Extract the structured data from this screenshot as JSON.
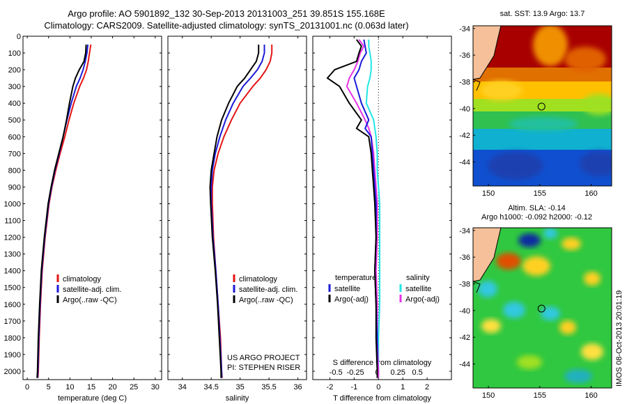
{
  "header": {
    "line1": "Argo profile: AO 5901892_132 30-Sep-2013 20131003_251 39.851S 155.168E",
    "line2": "Climatology: CARS2009. Satellite-adjusted climatology: synTS_20131001.nc (0.063d later)"
  },
  "colors": {
    "climatology": "#e41414",
    "satellite": "#1a1ad8",
    "argo": "#000000",
    "sat_salinity": "#22e6e6",
    "argo_adj_salinity": "#e632e6"
  },
  "depth_axis": {
    "ticks": [
      0,
      100,
      200,
      300,
      400,
      500,
      600,
      700,
      800,
      900,
      1000,
      1100,
      1200,
      1300,
      1400,
      1500,
      1600,
      1700,
      1800,
      1900,
      2000
    ],
    "ylim": [
      0,
      2050
    ]
  },
  "chart_data": [
    {
      "type": "line",
      "id": "temperature",
      "xlabel": "temperature (deg C)",
      "xlim": [
        -1,
        31.5
      ],
      "xticks": [
        0,
        5,
        10,
        15,
        20,
        25,
        30
      ],
      "depth": [
        50,
        100,
        150,
        200,
        250,
        300,
        400,
        500,
        600,
        700,
        800,
        900,
        1000,
        1200,
        1400,
        1600,
        1800,
        2000,
        2040
      ],
      "series": [
        {
          "name": "climatology",
          "values": [
            14.9,
            14.6,
            14.3,
            13.9,
            13.2,
            12.3,
            10.9,
            9.8,
            8.8,
            7.7,
            6.7,
            5.8,
            5.1,
            4.2,
            3.5,
            3.1,
            2.8,
            2.6,
            2.5
          ]
        },
        {
          "name": "satellite-adj. clim.",
          "values": [
            14.2,
            14.0,
            13.6,
            13.1,
            12.4,
            11.5,
            10.3,
            9.3,
            8.4,
            7.5,
            6.5,
            5.7,
            5.0,
            4.1,
            3.4,
            3.0,
            2.7,
            2.5,
            2.4
          ]
        },
        {
          "name": "Argo(..raw -QC)",
          "values": [
            13.8,
            13.7,
            13.3,
            12.2,
            11.3,
            10.7,
            9.9,
            9.2,
            8.4,
            7.4,
            6.4,
            5.6,
            4.9,
            4.0,
            3.3,
            2.9,
            2.6,
            2.4,
            2.3
          ]
        }
      ]
    },
    {
      "type": "line",
      "id": "salinity",
      "xlabel": "salinity",
      "xlim": [
        33.75,
        36.15
      ],
      "xticks": [
        34,
        34.5,
        35,
        35.5,
        36
      ],
      "tick_labels": [
        "34",
        "34.5",
        "35",
        "35.5",
        "36"
      ],
      "depth": [
        50,
        100,
        150,
        200,
        250,
        300,
        400,
        500,
        600,
        700,
        800,
        900,
        1000,
        1200,
        1400,
        1600,
        1800,
        2000,
        2040
      ],
      "series": [
        {
          "name": "climatology",
          "values": [
            35.55,
            35.55,
            35.52,
            35.45,
            35.35,
            35.22,
            35.0,
            34.85,
            34.72,
            34.62,
            34.55,
            34.52,
            34.52,
            34.54,
            34.58,
            34.62,
            34.66,
            34.68,
            34.69
          ]
        },
        {
          "name": "satellite-adj. clim.",
          "values": [
            35.42,
            35.42,
            35.38,
            35.3,
            35.18,
            35.05,
            34.88,
            34.75,
            34.65,
            34.57,
            34.52,
            34.5,
            34.5,
            34.53,
            34.58,
            34.62,
            34.65,
            34.68,
            34.68
          ]
        },
        {
          "name": "Argo(..raw -QC)",
          "values": [
            35.32,
            35.32,
            35.28,
            35.18,
            35.08,
            34.95,
            34.8,
            34.68,
            34.6,
            34.55,
            34.5,
            34.48,
            34.49,
            34.52,
            34.57,
            34.61,
            34.64,
            34.67,
            34.67
          ]
        }
      ],
      "annotation": [
        "US ARGO PROJECT",
        "PI: STEPHEN RISER"
      ]
    },
    {
      "type": "line",
      "id": "difference",
      "xlabel": "T difference from climatology",
      "xlabel_top": "S difference from climatology",
      "xlim": [
        -2.7,
        3.0
      ],
      "xticks": [
        -2,
        -1,
        0,
        1,
        2
      ],
      "s_tick_labels": [
        {
          "pos": -1.75,
          "label": "-0.5"
        },
        {
          "pos": -0.95,
          "label": "-0.25"
        },
        {
          "pos": -0.05,
          "label": "0"
        },
        {
          "pos": 0.8,
          "label": "0.25"
        },
        {
          "pos": 1.6,
          "label": "0.5"
        }
      ],
      "depth": [
        20,
        60,
        100,
        150,
        200,
        250,
        300,
        400,
        500,
        550,
        600,
        700,
        800,
        900,
        1000,
        1200,
        1400,
        1600,
        1800,
        2000,
        2040
      ],
      "series": [
        {
          "name": "temperature satellite",
          "values": [
            -0.6,
            -0.55,
            -0.5,
            -0.7,
            -0.8,
            -1.0,
            -0.9,
            -0.7,
            -0.4,
            -0.55,
            -0.3,
            -0.25,
            -0.2,
            -0.15,
            -0.1,
            -0.1,
            -0.15,
            -0.1,
            -0.05,
            -0.05,
            -0.05
          ]
        },
        {
          "name": "temperature Argo(-adj)",
          "values": [
            -0.9,
            -0.7,
            -0.8,
            -0.9,
            -1.8,
            -2.1,
            -1.6,
            -1.2,
            -0.7,
            -0.9,
            -0.4,
            -0.3,
            -0.25,
            -0.2,
            -0.15,
            -0.1,
            -0.15,
            -0.1,
            -0.1,
            -0.05,
            -0.05
          ]
        },
        {
          "name": "salinity satellite",
          "values": [
            -0.4,
            -0.4,
            -0.35,
            -0.3,
            -0.3,
            -0.35,
            -0.45,
            -0.5,
            -0.2,
            -0.15,
            -0.1,
            -0.05,
            -0.05,
            0.0,
            0.05,
            0.05,
            0.05,
            0.05,
            0.0,
            0.0,
            0.0
          ]
        },
        {
          "name": "salinity Argo(-adj)",
          "values": [
            -0.8,
            -0.6,
            -0.75,
            -0.85,
            -1.0,
            -1.2,
            -1.3,
            -0.9,
            -0.55,
            -0.4,
            -0.3,
            -0.2,
            -0.15,
            -0.1,
            -0.05,
            -0.05,
            -0.1,
            -0.05,
            -0.05,
            0.0,
            0.0
          ]
        }
      ],
      "legend": {
        "temp_title": "temperature",
        "sal_title": "salinity",
        "sat_label": "satellite",
        "adj_label": "Argo(-adj)"
      }
    },
    {
      "type": "heatmap",
      "id": "sst-map",
      "title": "sat. SST: 13.9 Argo: 13.7",
      "xticks": [
        150,
        155,
        160
      ],
      "yticks": [
        -34,
        -36,
        -38,
        -40,
        -42,
        -44
      ],
      "xlim": [
        148.5,
        162.0
      ],
      "ylim": [
        -45.8,
        -33.8
      ]
    },
    {
      "type": "heatmap",
      "id": "sla-map",
      "title_line1": "Altim. SLA: -0.14",
      "title_line2": "Argo h1000: -0.092 h2000: -0.12",
      "xticks": [
        150,
        155,
        160
      ],
      "yticks": [
        -34,
        -36,
        -38,
        -40,
        -42,
        -44
      ],
      "xlim": [
        148.5,
        162.0
      ],
      "ylim": [
        -45.8,
        -33.8
      ]
    }
  ],
  "legend": {
    "labels": [
      "climatology",
      "satellite-adj. clim.",
      "Argo(..raw -QC)"
    ]
  },
  "marker": {
    "lon": 155.168,
    "lat": -39.851
  },
  "watermark": "IMOS 08-Oct-2013 20:01:19"
}
